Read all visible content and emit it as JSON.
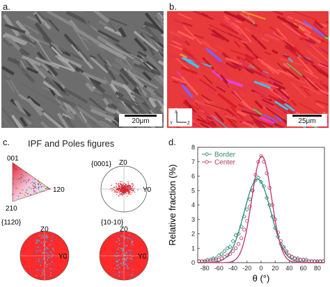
{
  "panels": {
    "a": {
      "label": "a.",
      "scalebar": "20μm"
    },
    "b": {
      "label": "b.",
      "scalebar": "25μm",
      "axes_inset": {
        "x_label": "Z",
        "y_label": "Y",
        "y_label_top": "X"
      }
    },
    "c": {
      "label": "c.",
      "title": "IPF and Poles figures",
      "ipf_corners": [
        "001",
        "120",
        "210"
      ],
      "poles": [
        {
          "label": "{0001}",
          "top": "Z0",
          "right": "Y0"
        },
        {
          "label": "{1120}",
          "top": "Z0",
          "right": "Y0"
        },
        {
          "label": "{10-10}",
          "top": "Z0",
          "right": "Y0"
        }
      ]
    },
    "d": {
      "label": "d.",
      "colors": {
        "border": "#2e8b6e",
        "center": "#c0306a"
      }
    }
  },
  "chart_data": {
    "type": "scatter",
    "xlabel": "θ (°)",
    "ylabel": "Relative fraction (%)",
    "xlim": [
      -90,
      90
    ],
    "ylim": [
      0,
      8
    ],
    "xticks": [
      -80,
      -60,
      -40,
      -20,
      0,
      20,
      40,
      60,
      80
    ],
    "yticks": [
      0,
      1,
      2,
      3,
      4,
      5,
      6,
      7,
      8
    ],
    "legend_position": "top-left",
    "series": [
      {
        "name": "Border",
        "color": "#2e8b6e",
        "marker": "diamond",
        "x": [
          -88,
          -84,
          -80,
          -76,
          -72,
          -68,
          -64,
          -60,
          -56,
          -52,
          -48,
          -44,
          -40,
          -36,
          -32,
          -28,
          -24,
          -20,
          -16,
          -12,
          -8,
          -4,
          0,
          4,
          8,
          12,
          16,
          20,
          24,
          28,
          32,
          36,
          40,
          44,
          48,
          52,
          56,
          60,
          64,
          68,
          72,
          76,
          80,
          84,
          88
        ],
        "y": [
          0.1,
          0.1,
          0.1,
          0.2,
          0.2,
          0.3,
          0.3,
          0.5,
          0.6,
          0.8,
          1.0,
          1.1,
          1.5,
          1.9,
          2.0,
          2.5,
          3.2,
          3.7,
          4.4,
          5.0,
          5.7,
          5.9,
          5.6,
          5.3,
          4.5,
          4.0,
          3.2,
          2.4,
          1.8,
          1.3,
          1.1,
          0.8,
          0.5,
          0.4,
          0.3,
          0.3,
          0.2,
          0.2,
          0.2,
          0.1,
          0.1,
          0.1,
          0.1,
          0.1,
          0.1
        ],
        "fit": {
          "amplitude": 5.8,
          "center": -5,
          "sigma": 19
        }
      },
      {
        "name": "Center",
        "color": "#c0306a",
        "marker": "circle",
        "x": [
          -88,
          -84,
          -80,
          -76,
          -72,
          -68,
          -64,
          -60,
          -56,
          -52,
          -48,
          -44,
          -40,
          -36,
          -32,
          -28,
          -24,
          -20,
          -16,
          -12,
          -8,
          -4,
          0,
          4,
          8,
          12,
          16,
          20,
          24,
          28,
          32,
          36,
          40,
          44,
          48,
          52,
          56,
          60,
          64,
          68,
          72,
          76,
          80,
          84,
          88
        ],
        "y": [
          0.1,
          0.1,
          0.1,
          0.1,
          0.1,
          0.2,
          0.2,
          0.2,
          0.3,
          0.4,
          0.5,
          0.6,
          0.8,
          1.0,
          1.3,
          1.7,
          2.3,
          2.9,
          3.9,
          5.0,
          6.1,
          7.0,
          7.4,
          7.0,
          6.2,
          5.2,
          4.0,
          3.0,
          2.1,
          1.5,
          1.0,
          0.7,
          0.5,
          0.4,
          0.3,
          0.2,
          0.2,
          0.2,
          0.1,
          0.1,
          0.1,
          0.1,
          0.1,
          0.1,
          0.1
        ],
        "fit": {
          "amplitude": 7.4,
          "center": 1,
          "sigma": 14
        }
      }
    ]
  }
}
